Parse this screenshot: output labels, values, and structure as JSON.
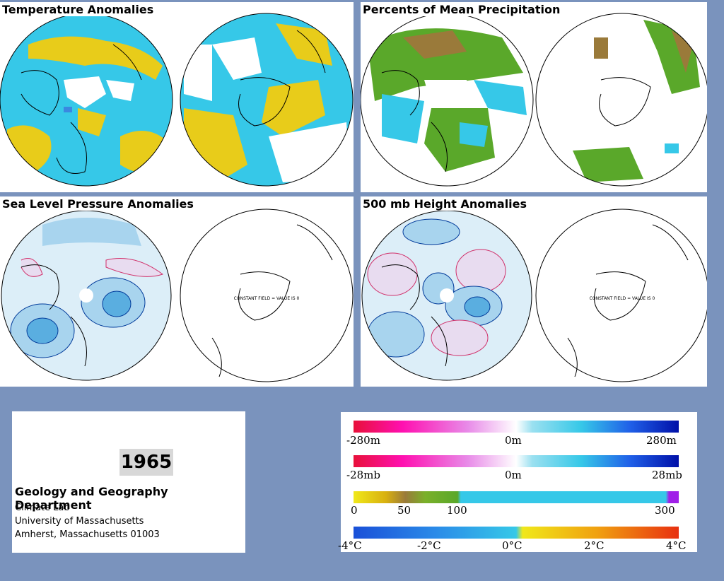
{
  "panels": {
    "temperature": {
      "title": "Temperature Anomalies"
    },
    "precipitation": {
      "title": "Percents of Mean Precipitation"
    },
    "slp": {
      "title": "Sea Level Pressure Anomalies",
      "constant_field": "CONSTANT FIELD = VALUE IS 0"
    },
    "height500": {
      "title": "500 mb Height Anomalies",
      "constant_field": "CONSTANT FIELD = VALUE IS 0"
    }
  },
  "info": {
    "year": "1965",
    "department": "Geology and Geography Department",
    "lines": [
      "Climate Lab",
      "University of Massachusetts",
      "Amherst, Massachusetts 01003"
    ]
  },
  "legend": {
    "height": {
      "min": "-280m",
      "mid": "0m",
      "max": "280m"
    },
    "pressure": {
      "min": "-28mb",
      "mid": "0m",
      "max": "28mb"
    },
    "precip": {
      "l0": "0",
      "l50": "50",
      "l100": "100",
      "l300": "300"
    },
    "temp": {
      "min": "-4°C",
      "m2": "-2°C",
      "mid": "0°C",
      "p2": "2°C",
      "max": "4°C"
    }
  },
  "colors": {
    "background": "#7a93bd",
    "warm": "#e8cc1a",
    "cool": "#36c8e8",
    "wet_green": "#5aa82a",
    "dry_brown": "#9a7a3a",
    "positive_contour": "#d0306a",
    "negative_contour": "#003a9a"
  }
}
